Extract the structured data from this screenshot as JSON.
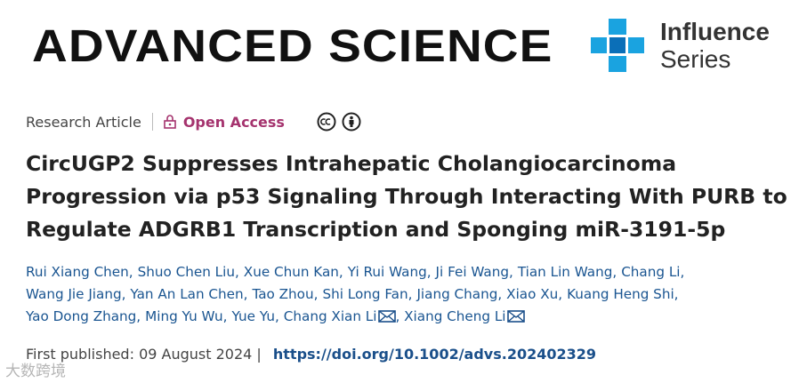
{
  "header": {
    "journal": "ADVANCED SCIENCE",
    "series_line1": "Influence",
    "series_line2": "Series"
  },
  "meta": {
    "article_type": "Research Article",
    "access": "Open Access"
  },
  "title": "CircUGP2 Suppresses Intrahepatic Cholangiocarcinoma Progression via p53 Signaling Through Interacting With PURB to Regulate ADGRB1 Transcription and Sponging miR-3191-5p",
  "author_lines": [
    [
      "Rui Xiang Chen,",
      "Shuo Chen Liu,",
      "Xue Chun Kan,",
      "Yi Rui Wang,",
      "Ji Fei Wang,",
      "Tian Lin Wang,",
      "Chang Li,"
    ],
    [
      "Wang Jie Jiang,",
      "Yan An Lan Chen,",
      "Tao Zhou,",
      "Shi Long Fan,",
      "Jiang Chang,",
      "Xiao Xu,",
      "Kuang Heng Shi,"
    ],
    [
      "Yao Dong Zhang,",
      "Ming Yu Wu,",
      "Yue Yu,",
      "Chang Xian Li",
      ", Xiang Cheng Li"
    ]
  ],
  "publication": {
    "label": "First published:",
    "date": "09 August 2024",
    "divider": "|",
    "doi": "https://doi.org/10.1002/advs.202402329"
  },
  "watermark": "大数跨境"
}
